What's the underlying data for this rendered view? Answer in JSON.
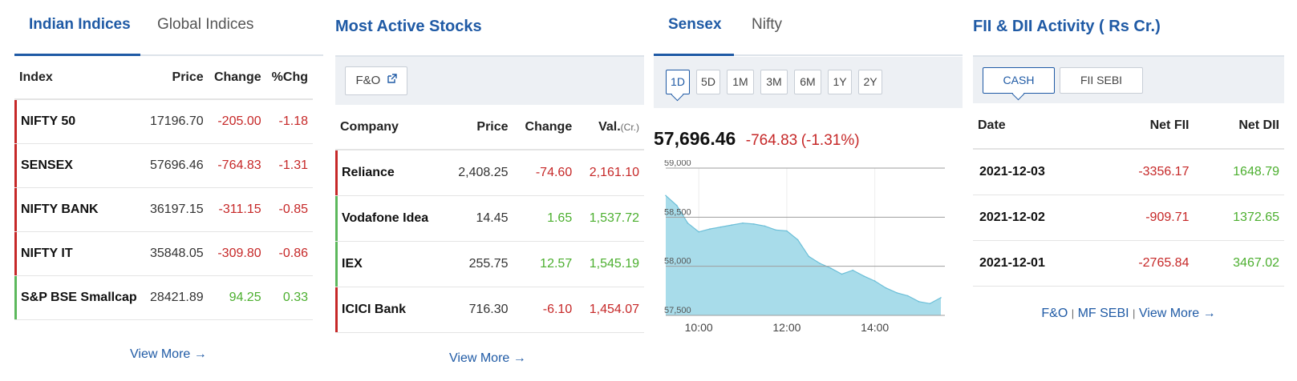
{
  "indices": {
    "tabs": [
      "Indian Indices",
      "Global Indices"
    ],
    "headers": [
      "Index",
      "Price",
      "Change",
      "%Chg"
    ],
    "rows": [
      {
        "name": "NIFTY 50",
        "price": "17196.70",
        "change": "-205.00",
        "pchg": "-1.18"
      },
      {
        "name": "SENSEX",
        "price": "57696.46",
        "change": "-764.83",
        "pchg": "-1.31"
      },
      {
        "name": "NIFTY BANK",
        "price": "36197.15",
        "change": "-311.15",
        "pchg": "-0.85"
      },
      {
        "name": "NIFTY IT",
        "price": "35848.05",
        "change": "-309.80",
        "pchg": "-0.86"
      },
      {
        "name": "S&P BSE Smallcap",
        "price": "28421.89",
        "change": "94.25",
        "pchg": "0.33"
      }
    ],
    "view_more": "View More →"
  },
  "active": {
    "title": "Most Active Stocks",
    "fo_button": "F&O",
    "headers": [
      "Company",
      "Price",
      "Change",
      "Val."
    ],
    "val_unit": "(Cr.)",
    "rows": [
      {
        "name": "Reliance",
        "price": "2,408.25",
        "change": "-74.60",
        "val": "2,161.10"
      },
      {
        "name": "Vodafone Idea",
        "price": "14.45",
        "change": "1.65",
        "val": "1,537.72"
      },
      {
        "name": "IEX",
        "price": "255.75",
        "change": "12.57",
        "val": "1,545.19"
      },
      {
        "name": "ICICI Bank",
        "price": "716.30",
        "change": "-6.10",
        "val": "1,454.07"
      }
    ],
    "view_more": "View More →"
  },
  "chart": {
    "tabs": [
      "Sensex",
      "Nifty"
    ],
    "ranges": [
      "1D",
      "5D",
      "1M",
      "3M",
      "6M",
      "1Y",
      "2Y"
    ],
    "selected_range": "1D",
    "price": "57,696.46",
    "change": "-764.83",
    "pchange": "(-1.31%)",
    "colors": {
      "area": "#a8dcea",
      "line": "#6cbfd8",
      "negative": "#c62828"
    }
  },
  "chart_data": {
    "type": "area",
    "ylim": [
      57500,
      59000
    ],
    "y_ticks": [
      "59,000",
      "58,500",
      "58,000",
      "57,500"
    ],
    "x_ticks": [
      "10:00",
      "12:00",
      "14:00"
    ],
    "x": [
      9.25,
      9.5,
      9.75,
      10.0,
      10.25,
      10.5,
      10.75,
      11.0,
      11.25,
      11.5,
      11.75,
      12.0,
      12.25,
      12.5,
      12.75,
      13.0,
      13.25,
      13.5,
      13.75,
      14.0,
      14.25,
      14.5,
      14.75,
      15.0,
      15.25,
      15.5
    ],
    "values": [
      58720,
      58620,
      58440,
      58350,
      58380,
      58400,
      58420,
      58440,
      58430,
      58410,
      58370,
      58360,
      58270,
      58100,
      58030,
      57980,
      57920,
      57960,
      57900,
      57850,
      57780,
      57730,
      57700,
      57640,
      57620,
      57680
    ]
  },
  "fii": {
    "title": "FII & DII Activity ( Rs Cr.)",
    "buttons": [
      "CASH",
      "FII SEBI"
    ],
    "headers": [
      "Date",
      "Net FII",
      "Net DII"
    ],
    "rows": [
      {
        "date": "2021-12-03",
        "fii": "-3356.17",
        "dii": "1648.79"
      },
      {
        "date": "2021-12-02",
        "fii": "-909.71",
        "dii": "1372.65"
      },
      {
        "date": "2021-12-01",
        "fii": "-2765.84",
        "dii": "3467.02"
      }
    ],
    "links": [
      "F&O",
      "MF SEBI",
      "View More →"
    ]
  }
}
